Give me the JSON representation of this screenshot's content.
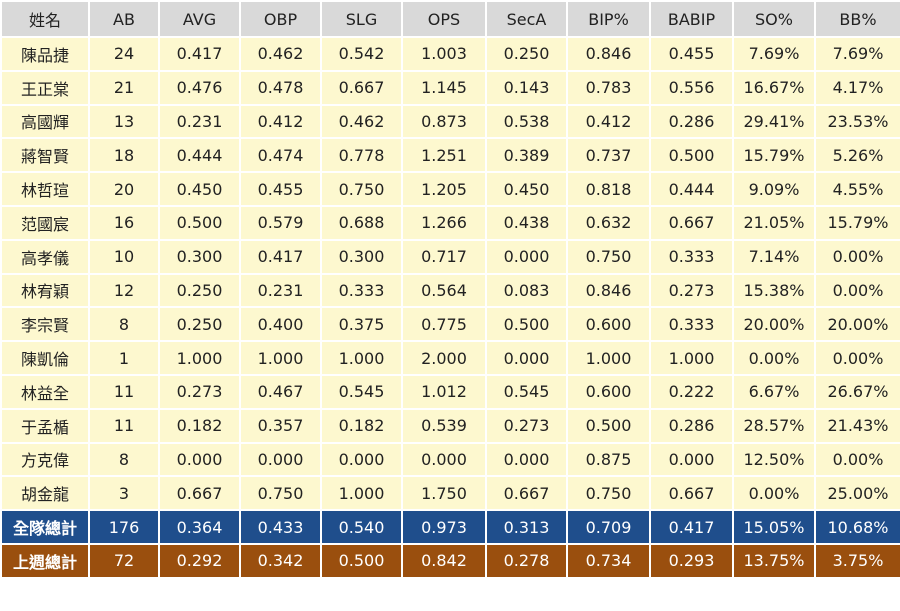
{
  "table": {
    "header": [
      "姓名",
      "AB",
      "AVG",
      "OBP",
      "SLG",
      "OPS",
      "SecA",
      "BIP%",
      "BABIP",
      "SO%",
      "BB%"
    ],
    "rows": [
      [
        "陳品捷",
        "24",
        "0.417",
        "0.462",
        "0.542",
        "1.003",
        "0.250",
        "0.846",
        "0.455",
        "7.69%",
        "7.69%"
      ],
      [
        "王正棠",
        "21",
        "0.476",
        "0.478",
        "0.667",
        "1.145",
        "0.143",
        "0.783",
        "0.556",
        "16.67%",
        "4.17%"
      ],
      [
        "高國輝",
        "13",
        "0.231",
        "0.412",
        "0.462",
        "0.873",
        "0.538",
        "0.412",
        "0.286",
        "29.41%",
        "23.53%"
      ],
      [
        "蔣智賢",
        "18",
        "0.444",
        "0.474",
        "0.778",
        "1.251",
        "0.389",
        "0.737",
        "0.500",
        "15.79%",
        "5.26%"
      ],
      [
        "林哲瑄",
        "20",
        "0.450",
        "0.455",
        "0.750",
        "1.205",
        "0.450",
        "0.818",
        "0.444",
        "9.09%",
        "4.55%"
      ],
      [
        "范國宸",
        "16",
        "0.500",
        "0.579",
        "0.688",
        "1.266",
        "0.438",
        "0.632",
        "0.667",
        "21.05%",
        "15.79%"
      ],
      [
        "高孝儀",
        "10",
        "0.300",
        "0.417",
        "0.300",
        "0.717",
        "0.000",
        "0.750",
        "0.333",
        "7.14%",
        "0.00%"
      ],
      [
        "林宥穎",
        "12",
        "0.250",
        "0.231",
        "0.333",
        "0.564",
        "0.083",
        "0.846",
        "0.273",
        "15.38%",
        "0.00%"
      ],
      [
        "李宗賢",
        "8",
        "0.250",
        "0.400",
        "0.375",
        "0.775",
        "0.500",
        "0.600",
        "0.333",
        "20.00%",
        "20.00%"
      ],
      [
        "陳凱倫",
        "1",
        "1.000",
        "1.000",
        "1.000",
        "2.000",
        "0.000",
        "1.000",
        "1.000",
        "0.00%",
        "0.00%"
      ],
      [
        "林益全",
        "11",
        "0.273",
        "0.467",
        "0.545",
        "1.012",
        "0.545",
        "0.600",
        "0.222",
        "6.67%",
        "26.67%"
      ],
      [
        "于孟楯",
        "11",
        "0.182",
        "0.357",
        "0.182",
        "0.539",
        "0.273",
        "0.500",
        "0.286",
        "28.57%",
        "21.43%"
      ],
      [
        "方克偉",
        "8",
        "0.000",
        "0.000",
        "0.000",
        "0.000",
        "0.000",
        "0.875",
        "0.000",
        "12.50%",
        "0.00%"
      ],
      [
        "胡金龍",
        "3",
        "0.667",
        "0.750",
        "1.000",
        "1.750",
        "0.667",
        "0.750",
        "0.667",
        "0.00%",
        "25.00%"
      ]
    ],
    "summary_rows": [
      [
        "全隊總計",
        "176",
        "0.364",
        "0.433",
        "0.540",
        "0.973",
        "0.313",
        "0.709",
        "0.417",
        "15.05%",
        "10.68%"
      ],
      [
        "上週總計",
        "72",
        "0.292",
        "0.342",
        "0.500",
        "0.842",
        "0.278",
        "0.734",
        "0.293",
        "13.75%",
        "3.75%"
      ]
    ]
  }
}
